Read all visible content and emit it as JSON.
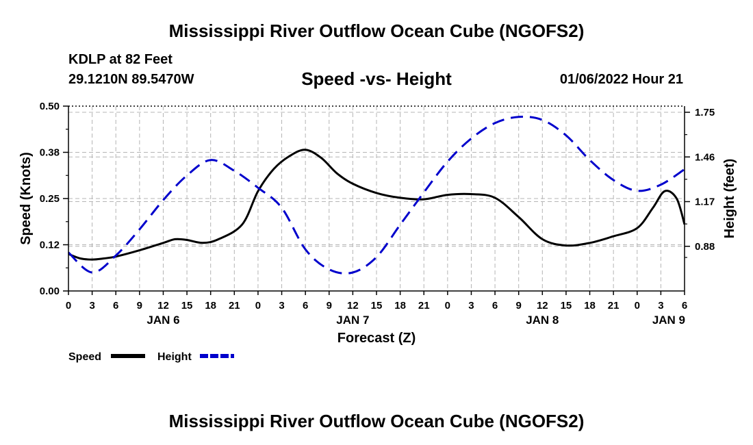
{
  "header": {
    "title": "Mississippi River Outflow Ocean Cube (NGOFS2)",
    "station": "KDLP at 82 Feet",
    "coords": "29.1210N  89.5470W",
    "chart_title": "Speed -vs- Height",
    "datetime": "01/06/2022 Hour 21"
  },
  "footer": {
    "title": "Mississippi River Outflow Ocean Cube (NGOFS2)"
  },
  "colors": {
    "speed": "#000000",
    "height": "#0000cc",
    "grid": "#b4b4b4"
  },
  "chart_data": {
    "type": "line",
    "title": "Speed -vs- Height",
    "xlabel": "Forecast (Z)",
    "ylabel_left": "Speed (Knots)",
    "ylabel_right": "Height (feet)",
    "x_unit": "hours from JAN 6 00Z",
    "xlim": [
      0,
      78
    ],
    "ylim_left": [
      0,
      0.5
    ],
    "ylim_right": [
      0.59,
      1.79
    ],
    "x_tick_labels": [
      "0",
      "3",
      "6",
      "9",
      "12",
      "15",
      "18",
      "21",
      "0",
      "3",
      "6",
      "9",
      "12",
      "15",
      "18",
      "21",
      "0",
      "3",
      "6",
      "9",
      "12",
      "15",
      "18",
      "21",
      "0",
      "3",
      "6"
    ],
    "day_labels": [
      {
        "label": "JAN 6",
        "x": 12
      },
      {
        "label": "JAN 7",
        "x": 36
      },
      {
        "label": "JAN 8",
        "x": 60
      },
      {
        "label": "JAN 9",
        "x": 76
      }
    ],
    "left_ticks": [
      {
        "value": 0.0,
        "label": "0.00"
      },
      {
        "value": 0.125,
        "label": "0.12"
      },
      {
        "value": 0.25,
        "label": "0.25"
      },
      {
        "value": 0.375,
        "label": "0.38"
      },
      {
        "value": 0.5,
        "label": "0.50"
      }
    ],
    "right_ticks": [
      {
        "value": 0.88,
        "label": "0.88"
      },
      {
        "value": 1.17,
        "label": "1.17"
      },
      {
        "value": 1.46,
        "label": "1.46"
      },
      {
        "value": 1.75,
        "label": "1.75"
      }
    ],
    "legend": [
      {
        "name": "Speed",
        "style": "solid"
      },
      {
        "name": "Height",
        "style": "dashed"
      }
    ],
    "series": [
      {
        "name": "Speed",
        "axis": "left",
        "style": "solid",
        "x": [
          0,
          1.5,
          3,
          4.5,
          6,
          9,
          12,
          13.5,
          15,
          17,
          19,
          22,
          24,
          26,
          28,
          30,
          32,
          34,
          36,
          39,
          42,
          45,
          48,
          51,
          54,
          57,
          60,
          63,
          66,
          69,
          72,
          74,
          75.5,
          77,
          78
        ],
        "values": [
          0.1,
          0.088,
          0.085,
          0.088,
          0.093,
          0.11,
          0.13,
          0.14,
          0.138,
          0.13,
          0.14,
          0.18,
          0.27,
          0.33,
          0.365,
          0.382,
          0.36,
          0.318,
          0.29,
          0.265,
          0.252,
          0.248,
          0.26,
          0.262,
          0.252,
          0.2,
          0.14,
          0.123,
          0.13,
          0.148,
          0.17,
          0.225,
          0.27,
          0.25,
          0.18
        ]
      },
      {
        "name": "Height",
        "axis": "right",
        "style": "dashed",
        "x": [
          0,
          3,
          6,
          9,
          12,
          15,
          18,
          21,
          24,
          27,
          30,
          33,
          36,
          39,
          42,
          45,
          48,
          51,
          54,
          57,
          60,
          63,
          66,
          69,
          72,
          75,
          78
        ],
        "values": [
          0.84,
          0.71,
          0.82,
          0.99,
          1.18,
          1.34,
          1.44,
          1.37,
          1.26,
          1.13,
          0.86,
          0.73,
          0.71,
          0.81,
          1.02,
          1.23,
          1.43,
          1.58,
          1.68,
          1.72,
          1.7,
          1.6,
          1.44,
          1.31,
          1.24,
          1.28,
          1.38
        ]
      }
    ]
  }
}
